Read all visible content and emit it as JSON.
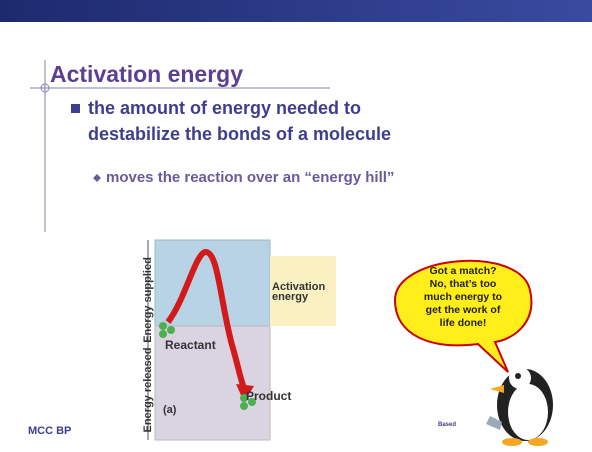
{
  "slide": {
    "title": "Activation energy",
    "bullet": [
      "the amount of energy needed to",
      "destabilize the bonds of a molecule"
    ],
    "sub_bullet": "moves the reaction over an “energy hill”",
    "diagram": {
      "axis_upper": "Energy supplied",
      "axis_lower": "Energy released",
      "activation": [
        "Activation",
        "energy"
      ],
      "reactant": "Reactant",
      "product": "Product",
      "panel": "(a)"
    },
    "bubble": [
      "Got a match?",
      "No, that’s too",
      "much energy to",
      "get the work of",
      "life done!"
    ],
    "footer": "MCC BP",
    "credit": "Based"
  }
}
